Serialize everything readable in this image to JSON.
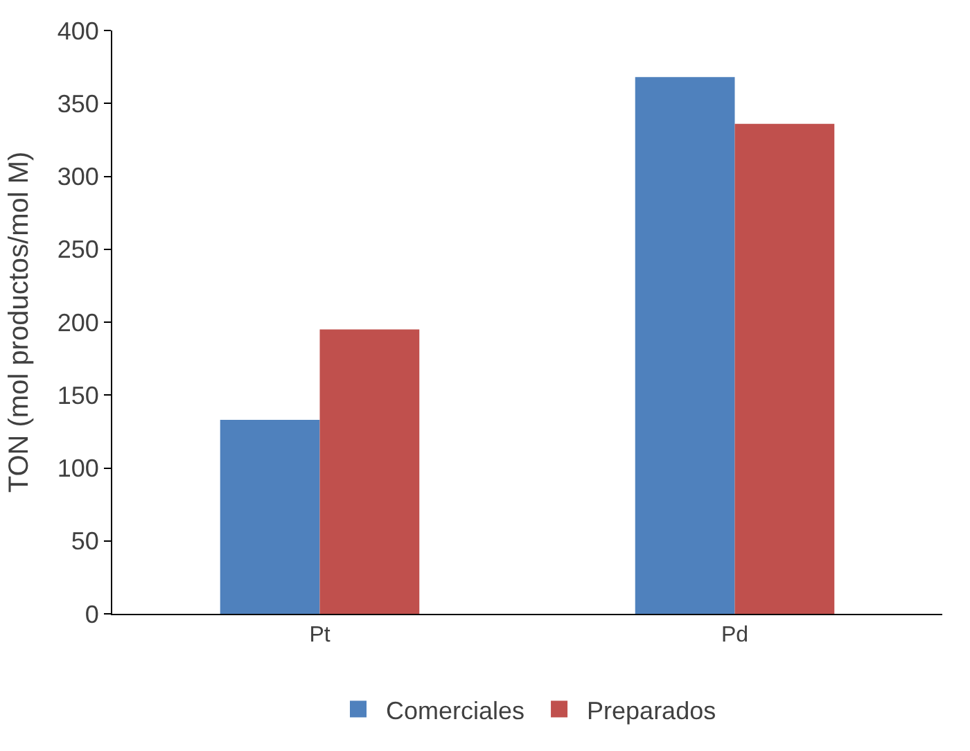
{
  "chart_data": {
    "type": "bar",
    "ylabel": "TON (mol productos/mol M)",
    "categories": [
      "Pt",
      "Pd"
    ],
    "series": [
      {
        "name": "Comerciales",
        "color": "#4f81bd",
        "values": [
          133,
          368
        ]
      },
      {
        "name": "Preparados",
        "color": "#c0504d",
        "values": [
          195,
          336
        ]
      }
    ],
    "ylim": [
      0,
      400
    ],
    "yticks": [
      0,
      50,
      100,
      150,
      200,
      250,
      300,
      350,
      400
    ],
    "grid": false,
    "legend": "bottom"
  }
}
